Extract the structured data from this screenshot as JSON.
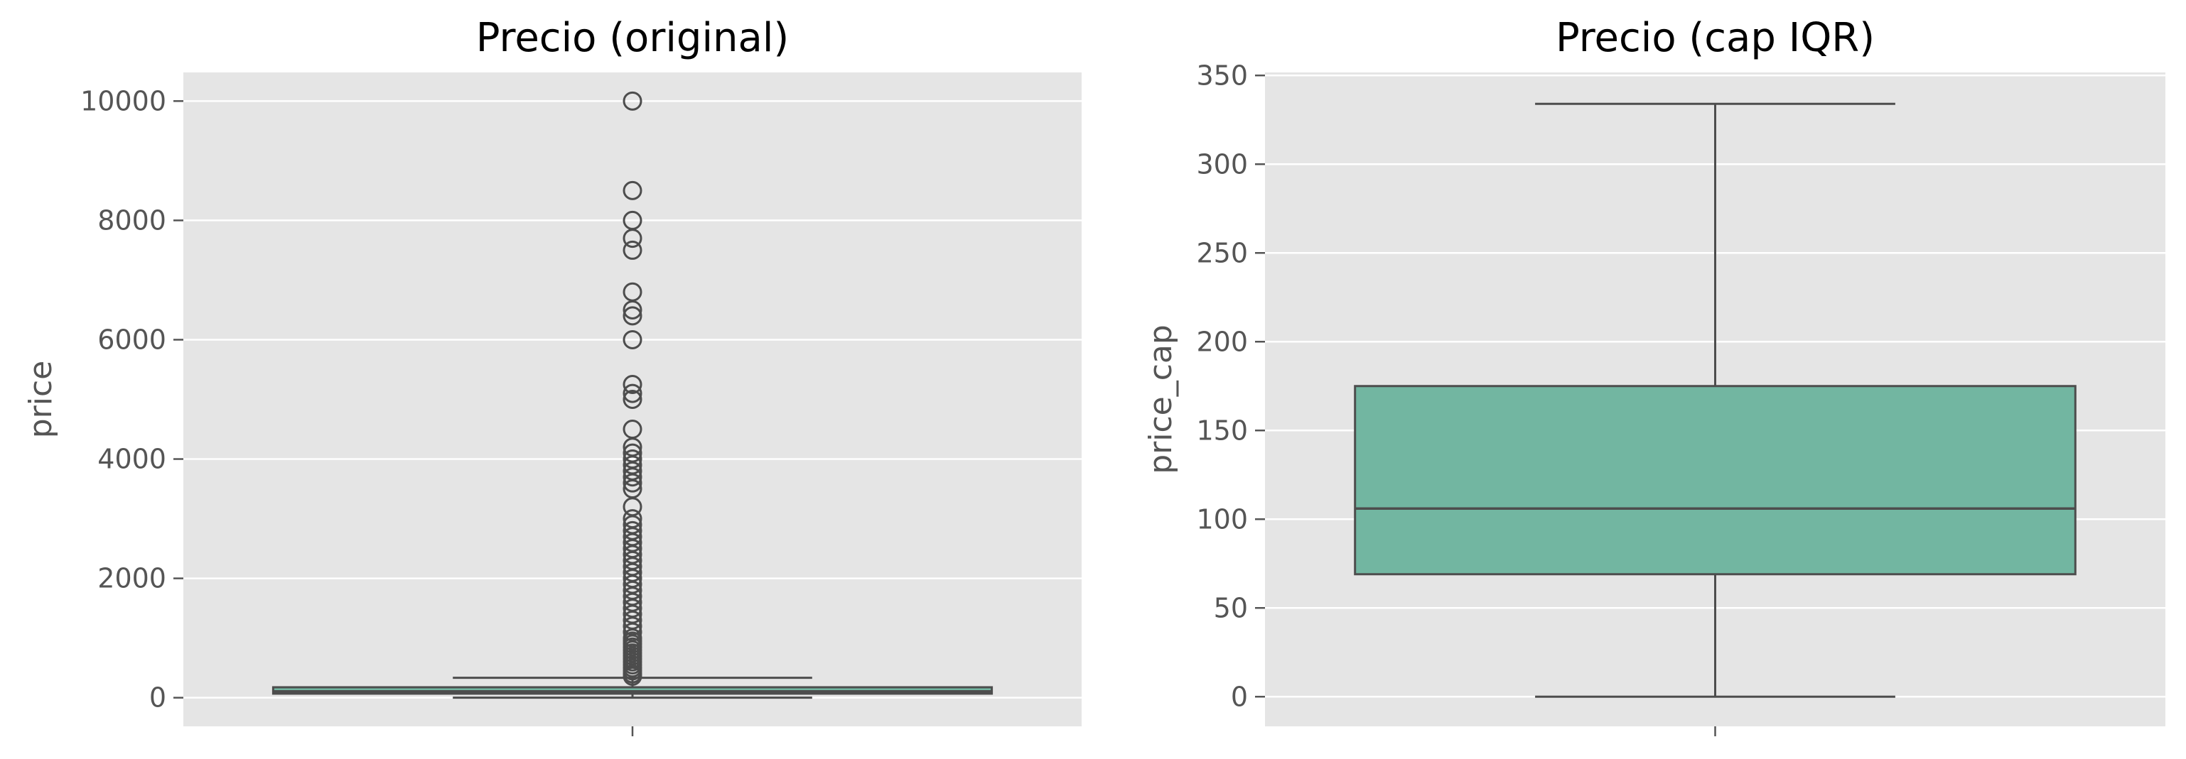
{
  "chart_data": [
    {
      "type": "box",
      "title": "Precio (original)",
      "xlabel": "",
      "ylabel": "price",
      "ylim": [
        -480,
        10480
      ],
      "yticks": [
        0,
        2000,
        4000,
        6000,
        8000,
        10000
      ],
      "grid": true,
      "box": {
        "q1": 68,
        "median": 106,
        "q3": 175,
        "whisker_low": 0,
        "whisker_high": 334,
        "color": "#72B6A1"
      },
      "outliers": [
        10000,
        8500,
        8000,
        7700,
        7500,
        6800,
        6500,
        6400,
        6000,
        5250,
        5100,
        5000,
        4500,
        4200,
        4100,
        4000,
        3900,
        3800,
        3700,
        3600,
        3500,
        3200,
        3000,
        2900,
        2800,
        2700,
        2600,
        2500,
        2400,
        2300,
        2200,
        2100,
        2000,
        1900,
        1800,
        1700,
        1600,
        1500,
        1400,
        1300,
        1200,
        1100,
        1000,
        950,
        900,
        850,
        800,
        750,
        700,
        650,
        600,
        550,
        500,
        450,
        400,
        360
      ]
    },
    {
      "type": "box",
      "title": "Precio (cap IQR)",
      "xlabel": "",
      "ylabel": "price_cap",
      "ylim": [
        -16.7,
        351.7
      ],
      "yticks": [
        0,
        50,
        100,
        150,
        200,
        250,
        300,
        350
      ],
      "grid": true,
      "box": {
        "q1": 69,
        "median": 106,
        "q3": 175,
        "whisker_low": 0,
        "whisker_high": 334,
        "color": "#72B6A1"
      },
      "outliers": []
    }
  ]
}
